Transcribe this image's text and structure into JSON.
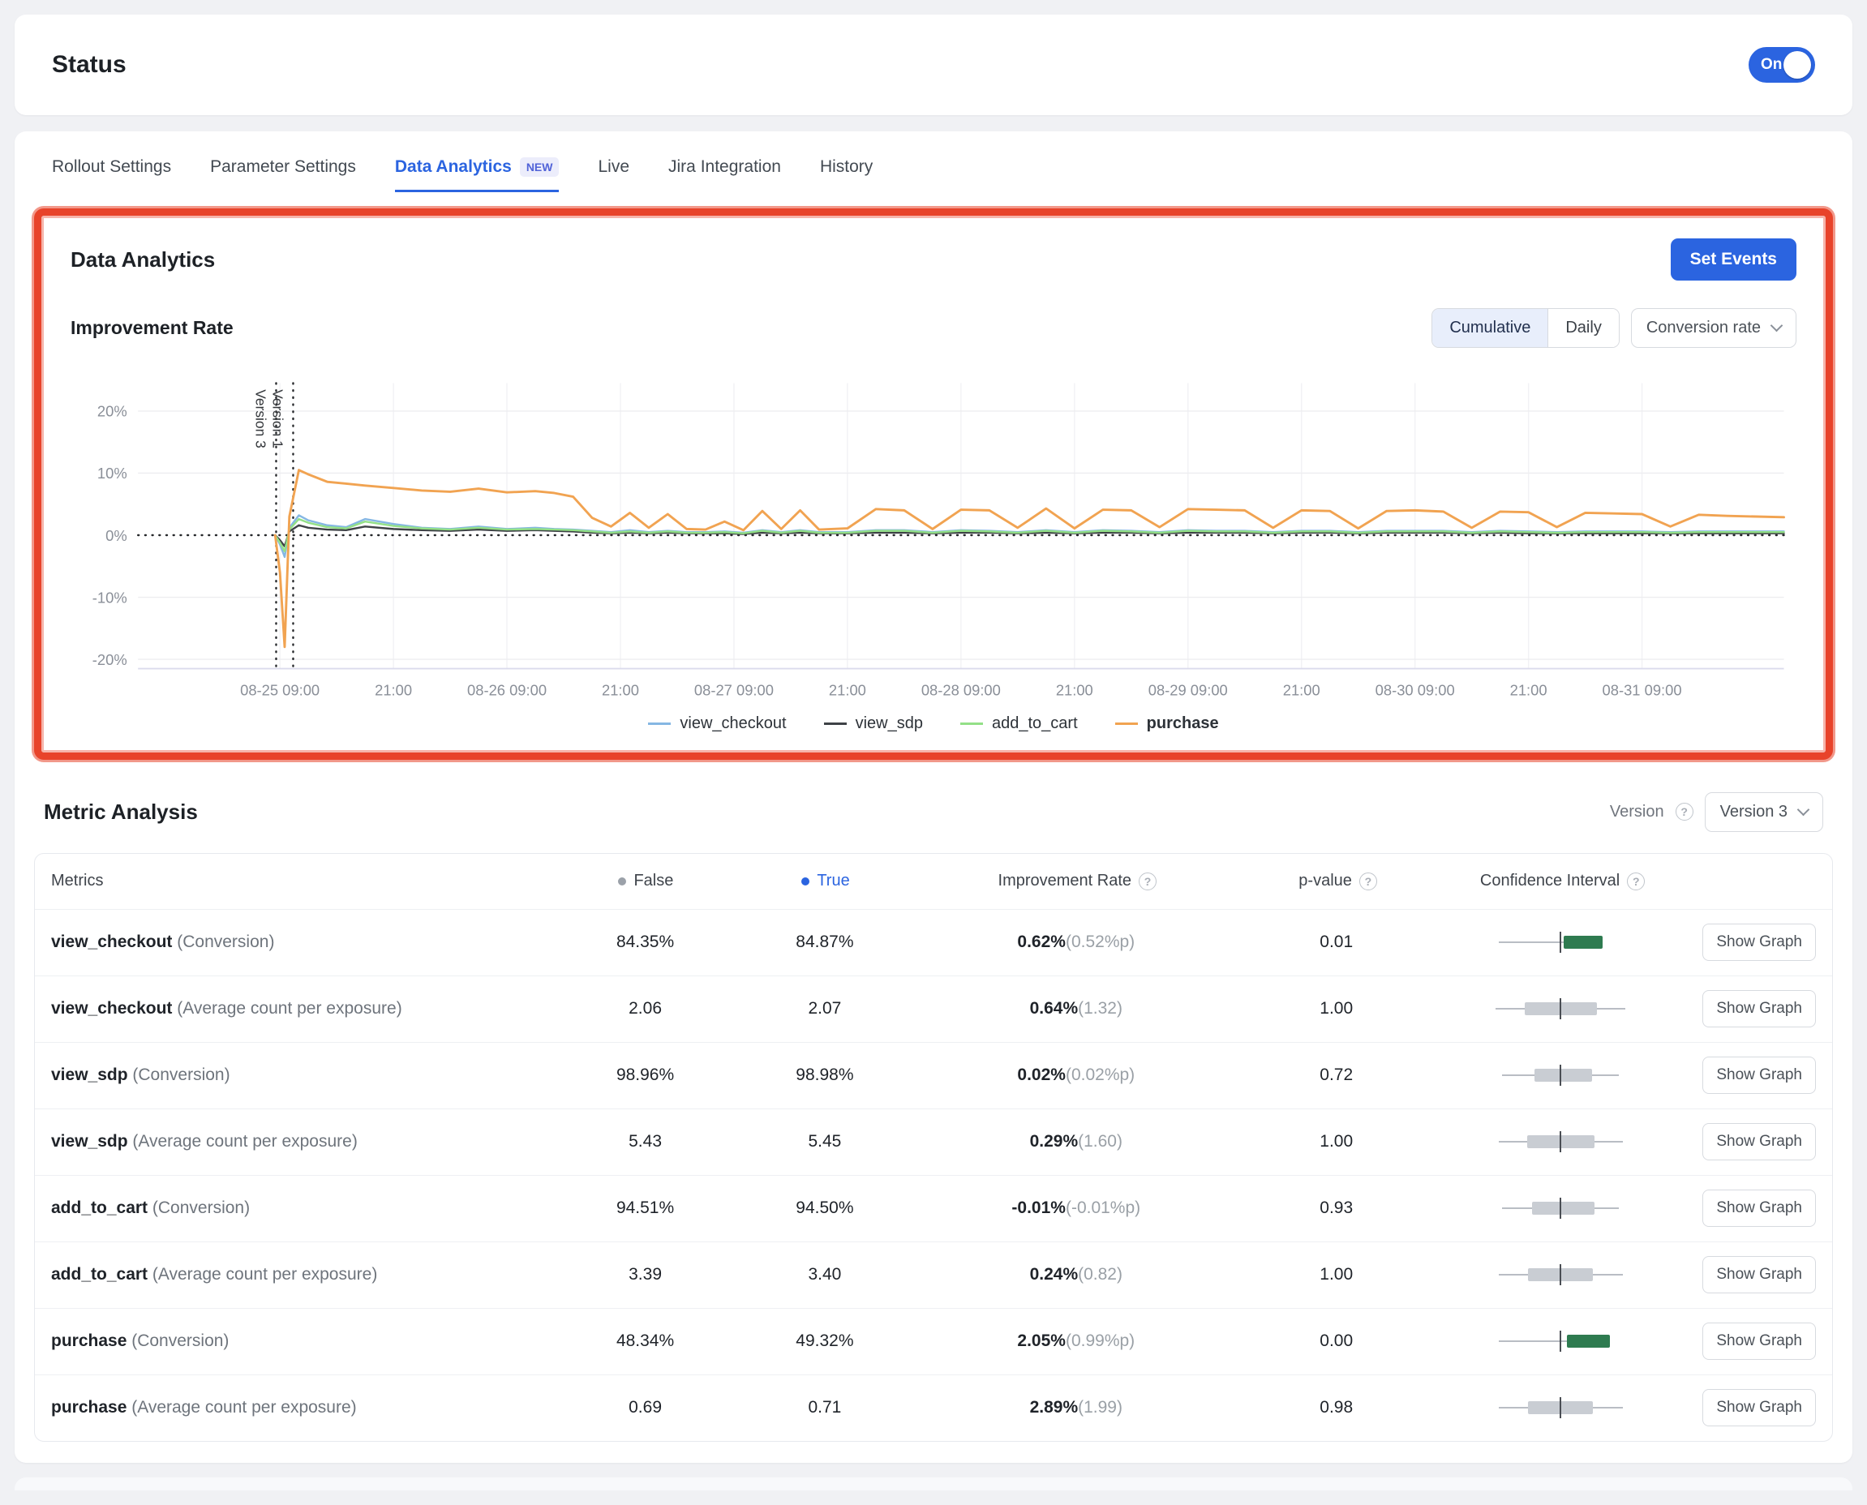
{
  "icons": {
    "help": "?"
  },
  "colors": {
    "accent": "#2b64e0",
    "annotation_highlight": "#e8432a",
    "false_dot": "#9ba1a9",
    "true_dot": "#2b64e0",
    "ci_green": "#2e7b50",
    "ci_gray": "#c9cdd3"
  },
  "status": {
    "title": "Status",
    "toggle_label": "On",
    "toggle_on": true
  },
  "tabs": {
    "items": [
      {
        "label": "Rollout Settings",
        "active": false
      },
      {
        "label": "Parameter Settings",
        "active": false
      },
      {
        "label": "Data Analytics",
        "active": true,
        "badge": "NEW"
      },
      {
        "label": "Live",
        "active": false
      },
      {
        "label": "Jira Integration",
        "active": false
      },
      {
        "label": "History",
        "active": false
      }
    ]
  },
  "analytics": {
    "title": "Data Analytics",
    "set_events_label": "Set Events",
    "improvement": {
      "title": "Improvement Rate",
      "mode_options": [
        "Cumulative",
        "Daily"
      ],
      "mode_selected": "Cumulative",
      "metric_dropdown": "Conversion rate"
    }
  },
  "chart_data": {
    "type": "line",
    "title": "Improvement Rate",
    "xlabel": "",
    "ylabel": "",
    "x_range": [
      0,
      174
    ],
    "ylim": [
      -21.5,
      24.5
    ],
    "grid": true,
    "legend_position": "bottom",
    "y_ticks": [
      {
        "value": 20,
        "label": "20%"
      },
      {
        "value": 10,
        "label": "10%"
      },
      {
        "value": 0,
        "label": "0%"
      },
      {
        "value": -10,
        "label": "-10%"
      },
      {
        "value": -20,
        "label": "-20%"
      }
    ],
    "x_ticks": [
      {
        "hour": 15,
        "label": "08-25 09:00"
      },
      {
        "hour": 27,
        "label": "21:00"
      },
      {
        "hour": 39,
        "label": "08-26 09:00"
      },
      {
        "hour": 51,
        "label": "21:00"
      },
      {
        "hour": 63,
        "label": "08-27 09:00"
      },
      {
        "hour": 75,
        "label": "21:00"
      },
      {
        "hour": 87,
        "label": "08-28 09:00"
      },
      {
        "hour": 99,
        "label": "21:00"
      },
      {
        "hour": 111,
        "label": "08-29 09:00"
      },
      {
        "hour": 123,
        "label": "21:00"
      },
      {
        "hour": 135,
        "label": "08-30 09:00"
      },
      {
        "hour": 147,
        "label": "21:00"
      },
      {
        "hour": 159,
        "label": "08-31 09:00"
      }
    ],
    "version_markers": [
      {
        "label": "Version 3",
        "hour": 14.6
      },
      {
        "label": "Version 1",
        "hour": 16.4
      }
    ],
    "x_hours": [
      14.5,
      15,
      15.5,
      16,
      17,
      18,
      20,
      22,
      24,
      27,
      30,
      33,
      36,
      39,
      42,
      44,
      46,
      48,
      50,
      52,
      54,
      56,
      58,
      60,
      62,
      64,
      66,
      68,
      70,
      72,
      75,
      78,
      81,
      84,
      87,
      90,
      93,
      96,
      99,
      102,
      105,
      108,
      111,
      114,
      117,
      120,
      123,
      126,
      129,
      132,
      135,
      138,
      141,
      144,
      147,
      150,
      153,
      156,
      159,
      162,
      165,
      168,
      171,
      174
    ],
    "series": [
      {
        "name": "view_checkout",
        "color": "#85b7e3",
        "values": [
          0,
          -1.5,
          -3.5,
          1.2,
          3.2,
          2.4,
          1.6,
          1.3,
          2.6,
          1.8,
          1.2,
          1.0,
          1.4,
          1.0,
          1.2,
          1.0,
          0.9,
          0.7,
          0.5,
          0.8,
          0.5,
          0.7,
          0.5,
          0.5,
          0.6,
          0.4,
          0.8,
          0.5,
          0.8,
          0.5,
          0.5,
          0.8,
          0.8,
          0.5,
          0.8,
          0.7,
          0.5,
          0.8,
          0.5,
          0.8,
          0.7,
          0.5,
          0.8,
          0.7,
          0.7,
          0.5,
          0.7,
          0.7,
          0.5,
          0.7,
          0.7,
          0.7,
          0.5,
          0.7,
          0.6,
          0.5,
          0.6,
          0.6,
          0.6,
          0.5,
          0.6,
          0.6,
          0.6,
          0.6
        ]
      },
      {
        "name": "view_sdp",
        "color": "#3e4246",
        "values": [
          0,
          -0.8,
          -1.8,
          0.6,
          1.6,
          1.2,
          0.9,
          0.8,
          1.4,
          1.0,
          0.8,
          0.7,
          0.9,
          0.7,
          0.8,
          0.7,
          0.6,
          0.4,
          0.3,
          0.4,
          0.3,
          0.4,
          0.3,
          0.3,
          0.3,
          0.2,
          0.4,
          0.3,
          0.4,
          0.3,
          0.3,
          0.4,
          0.4,
          0.3,
          0.4,
          0.4,
          0.3,
          0.4,
          0.3,
          0.4,
          0.4,
          0.3,
          0.4,
          0.4,
          0.4,
          0.3,
          0.4,
          0.4,
          0.3,
          0.4,
          0.4,
          0.4,
          0.3,
          0.4,
          0.3,
          0.3,
          0.3,
          0.3,
          0.3,
          0.3,
          0.3,
          0.3,
          0.3,
          0.3
        ]
      },
      {
        "name": "add_to_cart",
        "color": "#93e087",
        "values": [
          0,
          -1.2,
          -2.6,
          0.9,
          2.6,
          2.0,
          1.3,
          1.1,
          2.2,
          1.5,
          1.1,
          0.9,
          1.2,
          0.9,
          1.0,
          0.9,
          0.8,
          0.6,
          0.4,
          0.6,
          0.4,
          0.6,
          0.4,
          0.4,
          0.5,
          0.3,
          0.7,
          0.4,
          0.7,
          0.4,
          0.4,
          0.7,
          0.7,
          0.4,
          0.7,
          0.6,
          0.4,
          0.7,
          0.4,
          0.7,
          0.6,
          0.4,
          0.7,
          0.6,
          0.6,
          0.4,
          0.6,
          0.6,
          0.4,
          0.6,
          0.6,
          0.6,
          0.4,
          0.6,
          0.5,
          0.4,
          0.5,
          0.5,
          0.5,
          0.4,
          0.5,
          0.5,
          0.5,
          0.5
        ]
      },
      {
        "name": "purchase",
        "color": "#f1a351",
        "values": [
          0,
          -6,
          -18,
          3,
          10.5,
          9.8,
          8.6,
          8.3,
          8.0,
          7.6,
          7.2,
          7.0,
          7.5,
          6.9,
          7.1,
          6.8,
          6.2,
          2.8,
          1.4,
          3.6,
          1.2,
          3.4,
          1.0,
          0.9,
          2.2,
          0.8,
          3.9,
          1.0,
          4.0,
          0.9,
          1.1,
          4.2,
          4.0,
          1.0,
          4.1,
          4.0,
          1.2,
          4.3,
          1.1,
          4.1,
          4.0,
          1.3,
          4.2,
          4.1,
          4.0,
          1.2,
          4.0,
          3.9,
          1.1,
          3.9,
          4.0,
          3.8,
          1.2,
          3.8,
          3.7,
          1.3,
          3.6,
          3.5,
          3.4,
          1.4,
          3.3,
          3.1,
          3.0,
          2.9
        ]
      }
    ]
  },
  "metric_analysis": {
    "title": "Metric Analysis",
    "version_label": "Version",
    "version_selected": "Version 3",
    "show_graph_label": "Show Graph",
    "table": {
      "columns": [
        {
          "key": "metric",
          "label": "Metrics",
          "align": "left"
        },
        {
          "key": "false",
          "label": "False",
          "dot": "#9ba1a9"
        },
        {
          "key": "true",
          "label": "True",
          "dot": "#2b64e0",
          "text_color": "#2b64e0"
        },
        {
          "key": "improvement",
          "label": "Improvement Rate",
          "help": true
        },
        {
          "key": "p",
          "label": "p-value",
          "help": true
        },
        {
          "key": "ci",
          "label": "Confidence Interval",
          "help": true
        },
        {
          "key": "action",
          "label": ""
        }
      ],
      "rows": [
        {
          "metric": "view_checkout",
          "metric_suffix": "(Conversion)",
          "false_val": "84.35%",
          "true_val": "84.87%",
          "imp_main": "0.62%",
          "imp_sub": "(0.52%p)",
          "p_value": "0.01",
          "ci": {
            "whisker": [
              0.02,
              0.68
            ],
            "bar": [
              0.52,
              0.82
            ],
            "color": "green"
          }
        },
        {
          "metric": "view_checkout",
          "metric_suffix": "(Average count per exposure)",
          "false_val": "2.06",
          "true_val": "2.07",
          "imp_main": "0.64%",
          "imp_sub": "(1.32)",
          "p_value": "1.00",
          "ci": {
            "whisker": [
              0.0,
              1.0
            ],
            "bar": [
              0.22,
              0.78
            ],
            "color": "gray"
          }
        },
        {
          "metric": "view_sdp",
          "metric_suffix": "(Conversion)",
          "false_val": "98.96%",
          "true_val": "98.98%",
          "imp_main": "0.02%",
          "imp_sub": "(0.02%p)",
          "p_value": "0.72",
          "ci": {
            "whisker": [
              0.05,
              0.95
            ],
            "bar": [
              0.3,
              0.74
            ],
            "color": "gray"
          }
        },
        {
          "metric": "view_sdp",
          "metric_suffix": "(Average count per exposure)",
          "false_val": "5.43",
          "true_val": "5.45",
          "imp_main": "0.29%",
          "imp_sub": "(1.60)",
          "p_value": "1.00",
          "ci": {
            "whisker": [
              0.02,
              0.98
            ],
            "bar": [
              0.24,
              0.76
            ],
            "color": "gray"
          }
        },
        {
          "metric": "add_to_cart",
          "metric_suffix": "(Conversion)",
          "false_val": "94.51%",
          "true_val": "94.50%",
          "imp_main": "-0.01%",
          "imp_sub": "(-0.01%p)",
          "p_value": "0.93",
          "ci": {
            "whisker": [
              0.05,
              0.95
            ],
            "bar": [
              0.28,
              0.76
            ],
            "color": "gray"
          }
        },
        {
          "metric": "add_to_cart",
          "metric_suffix": "(Average count per exposure)",
          "false_val": "3.39",
          "true_val": "3.40",
          "imp_main": "0.24%",
          "imp_sub": "(0.82)",
          "p_value": "1.00",
          "ci": {
            "whisker": [
              0.02,
              0.98
            ],
            "bar": [
              0.25,
              0.75
            ],
            "color": "gray"
          }
        },
        {
          "metric": "purchase",
          "metric_suffix": "(Conversion)",
          "false_val": "48.34%",
          "true_val": "49.32%",
          "imp_main": "2.05%",
          "imp_sub": "(0.99%p)",
          "p_value": "0.00",
          "ci": {
            "whisker": [
              0.02,
              0.7
            ],
            "bar": [
              0.55,
              0.88
            ],
            "color": "green"
          }
        },
        {
          "metric": "purchase",
          "metric_suffix": "(Average count per exposure)",
          "false_val": "0.69",
          "true_val": "0.71",
          "imp_main": "2.89%",
          "imp_sub": "(1.99)",
          "p_value": "0.98",
          "ci": {
            "whisker": [
              0.02,
              0.98
            ],
            "bar": [
              0.25,
              0.75
            ],
            "color": "gray"
          }
        }
      ]
    }
  }
}
